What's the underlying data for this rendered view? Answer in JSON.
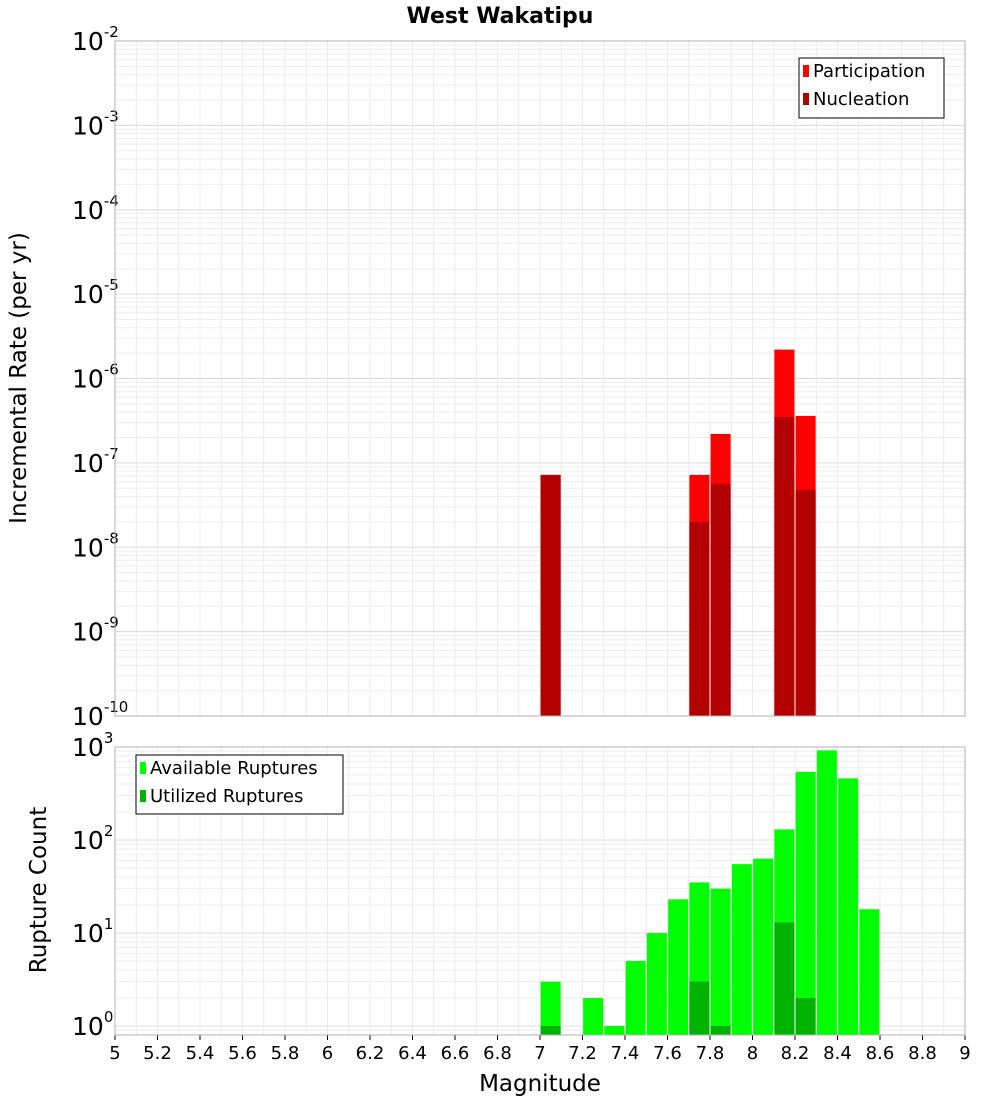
{
  "chart_data": [
    {
      "type": "bar",
      "title": "West Wakatipu",
      "xlabel": "",
      "ylabel": "Incremental Rate (per yr)",
      "xlim": [
        5,
        9
      ],
      "ylim": [
        1e-10,
        0.01
      ],
      "y_scale": "log",
      "grid": true,
      "legend_position": "top-right",
      "y_ticks": [
        {
          "base": "10",
          "exp": "-2"
        },
        {
          "base": "10",
          "exp": "-3"
        },
        {
          "base": "10",
          "exp": "-4"
        },
        {
          "base": "10",
          "exp": "-5"
        },
        {
          "base": "10",
          "exp": "-6"
        },
        {
          "base": "10",
          "exp": "-7"
        },
        {
          "base": "10",
          "exp": "-8"
        },
        {
          "base": "10",
          "exp": "-9"
        },
        {
          "base": "10",
          "exp": "-10"
        }
      ],
      "series": [
        {
          "name": "Participation",
          "color": "#ff0000",
          "x": [
            7.05,
            7.75,
            7.85,
            8.15,
            8.25
          ],
          "values": [
            7.2e-08,
            7.2e-08,
            2.2e-07,
            2.2e-06,
            3.6e-07
          ]
        },
        {
          "name": "Nucleation",
          "color": "#b30000",
          "x": [
            7.05,
            7.75,
            7.85,
            8.15,
            8.25
          ],
          "values": [
            7.2e-08,
            2e-08,
            5.6e-08,
            3.5e-07,
            4.8e-08
          ]
        }
      ]
    },
    {
      "type": "bar",
      "title": "",
      "xlabel": "Magnitude",
      "ylabel": "Rupture Count",
      "xlim": [
        5,
        9
      ],
      "ylim": [
        0.8,
        1000
      ],
      "y_scale": "log",
      "grid": true,
      "legend_position": "top-left",
      "y_ticks": [
        {
          "base": "10",
          "exp": "3"
        },
        {
          "base": "10",
          "exp": "2"
        },
        {
          "base": "10",
          "exp": "1"
        },
        {
          "base": "10",
          "exp": "0"
        }
      ],
      "x_ticks": [
        "5",
        "5.2",
        "5.4",
        "5.6",
        "5.8",
        "6",
        "6.2",
        "6.4",
        "6.6",
        "6.8",
        "7",
        "7.2",
        "7.4",
        "7.6",
        "7.8",
        "8",
        "8.2",
        "8.4",
        "8.6",
        "8.8",
        "9"
      ],
      "series": [
        {
          "name": "Available Ruptures",
          "color": "#00ff00",
          "x": [
            7.05,
            7.25,
            7.35,
            7.45,
            7.55,
            7.65,
            7.75,
            7.85,
            7.95,
            8.05,
            8.15,
            8.25,
            8.35,
            8.45,
            8.55
          ],
          "values": [
            3,
            2,
            1,
            5,
            10,
            23,
            35,
            30,
            55,
            63,
            130,
            540,
            920,
            460,
            18
          ]
        },
        {
          "name": "Utilized Ruptures",
          "color": "#00b300",
          "x": [
            7.05,
            7.75,
            7.85,
            8.15,
            8.25
          ],
          "values": [
            1,
            3,
            1,
            13,
            2
          ]
        }
      ]
    }
  ]
}
